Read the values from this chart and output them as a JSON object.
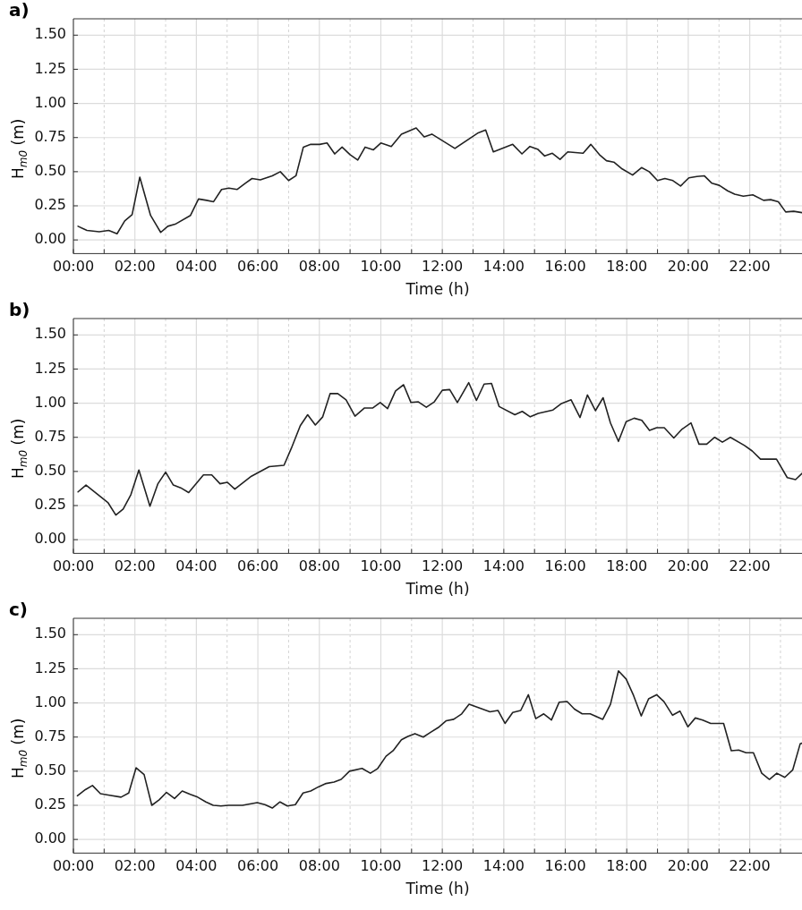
{
  "chart_data": [
    {
      "type": "line",
      "title": "a)",
      "xlabel": "Time (h)",
      "ylabel": "H$_{m0}$ (m)",
      "grid": true,
      "legend": false,
      "marker": "none",
      "line_style": "solid",
      "xlim": [
        0,
        23.7
      ],
      "ylim": [
        -0.1,
        1.62
      ],
      "xticks": [
        {
          "value": 0,
          "label": "00:00"
        },
        {
          "value": 1,
          "label": null
        },
        {
          "value": 2,
          "label": "02:00"
        },
        {
          "value": 3,
          "label": null
        },
        {
          "value": 4,
          "label": "04:00"
        },
        {
          "value": 5,
          "label": null
        },
        {
          "value": 6,
          "label": "06:00"
        },
        {
          "value": 7,
          "label": null
        },
        {
          "value": 8,
          "label": "08:00"
        },
        {
          "value": 9,
          "label": null
        },
        {
          "value": 10,
          "label": "10:00"
        },
        {
          "value": 11,
          "label": null
        },
        {
          "value": 12,
          "label": "12:00"
        },
        {
          "value": 13,
          "label": null
        },
        {
          "value": 14,
          "label": "14:00"
        },
        {
          "value": 15,
          "label": null
        },
        {
          "value": 16,
          "label": "16:00"
        },
        {
          "value": 17,
          "label": null
        },
        {
          "value": 18,
          "label": "18:00"
        },
        {
          "value": 19,
          "label": null
        },
        {
          "value": 20,
          "label": "20:00"
        },
        {
          "value": 21,
          "label": null
        },
        {
          "value": 22,
          "label": "22:00"
        },
        {
          "value": 23,
          "label": null
        }
      ],
      "yticks": [
        {
          "value": 0,
          "label": "0.00"
        },
        {
          "value": 0.25,
          "label": "0.25"
        },
        {
          "value": 0.5,
          "label": "0.50"
        },
        {
          "value": 0.75,
          "label": "0.75"
        },
        {
          "value": 1,
          "label": "1.00"
        },
        {
          "value": 1.25,
          "label": "1.25"
        },
        {
          "value": 1.5,
          "label": "1.50"
        }
      ],
      "x": [
        0.15,
        0.44,
        0.84,
        1.15,
        1.42,
        1.67,
        1.91,
        2.16,
        2.51,
        2.84,
        3.07,
        3.31,
        3.81,
        4.07,
        4.33,
        4.56,
        4.82,
        5.06,
        5.33,
        5.59,
        5.81,
        6.08,
        6.47,
        6.73,
        7.0,
        7.24,
        7.48,
        7.72,
        8.01,
        8.25,
        8.5,
        8.74,
        9.0,
        9.25,
        9.49,
        9.76,
        10.0,
        10.34,
        10.67,
        11.15,
        11.41,
        11.66,
        12.41,
        13.17,
        13.41,
        13.66,
        14.29,
        14.59,
        14.85,
        15.1,
        15.33,
        15.58,
        15.83,
        16.08,
        16.58,
        16.83,
        17.11,
        17.34,
        17.58,
        17.85,
        18.19,
        18.48,
        18.73,
        19.0,
        19.24,
        19.5,
        19.75,
        20.02,
        20.28,
        20.52,
        20.77,
        21.01,
        21.28,
        21.51,
        21.79,
        22.1,
        22.45,
        22.68,
        22.93,
        23.17,
        23.43,
        23.7
      ],
      "series": [
        {
          "color": "#222222",
          "values": [
            0.1,
            0.07,
            0.06,
            0.07,
            0.045,
            0.14,
            0.185,
            0.46,
            0.18,
            0.055,
            0.1,
            0.115,
            0.18,
            0.3,
            0.29,
            0.28,
            0.37,
            0.38,
            0.37,
            0.415,
            0.45,
            0.44,
            0.47,
            0.5,
            0.435,
            0.47,
            0.68,
            0.7,
            0.7,
            0.71,
            0.63,
            0.68,
            0.625,
            0.585,
            0.68,
            0.66,
            0.71,
            0.685,
            0.775,
            0.82,
            0.755,
            0.775,
            0.67,
            0.785,
            0.805,
            0.645,
            0.7,
            0.63,
            0.685,
            0.665,
            0.615,
            0.635,
            0.59,
            0.645,
            0.635,
            0.7,
            0.625,
            0.58,
            0.57,
            0.52,
            0.475,
            0.53,
            0.5,
            0.435,
            0.45,
            0.435,
            0.395,
            0.455,
            0.465,
            0.47,
            0.415,
            0.4,
            0.36,
            0.335,
            0.32,
            0.33,
            0.29,
            0.295,
            0.28,
            0.205,
            0.21,
            0.2
          ]
        }
      ]
    },
    {
      "type": "line",
      "title": "b)",
      "xlabel": "Time (h)",
      "ylabel": "H$_{m0}$ (m)",
      "grid": true,
      "legend": false,
      "marker": "none",
      "line_style": "solid",
      "xlim": [
        0,
        23.7
      ],
      "ylim": [
        -0.1,
        1.62
      ],
      "xticks": [
        {
          "value": 0,
          "label": "00:00"
        },
        {
          "value": 1,
          "label": null
        },
        {
          "value": 2,
          "label": "02:00"
        },
        {
          "value": 3,
          "label": null
        },
        {
          "value": 4,
          "label": "04:00"
        },
        {
          "value": 5,
          "label": null
        },
        {
          "value": 6,
          "label": "06:00"
        },
        {
          "value": 7,
          "label": null
        },
        {
          "value": 8,
          "label": "08:00"
        },
        {
          "value": 9,
          "label": null
        },
        {
          "value": 10,
          "label": "10:00"
        },
        {
          "value": 11,
          "label": null
        },
        {
          "value": 12,
          "label": "12:00"
        },
        {
          "value": 13,
          "label": null
        },
        {
          "value": 14,
          "label": "14:00"
        },
        {
          "value": 15,
          "label": null
        },
        {
          "value": 16,
          "label": "16:00"
        },
        {
          "value": 17,
          "label": null
        },
        {
          "value": 18,
          "label": "18:00"
        },
        {
          "value": 19,
          "label": null
        },
        {
          "value": 20,
          "label": "20:00"
        },
        {
          "value": 21,
          "label": null
        },
        {
          "value": 22,
          "label": "22:00"
        },
        {
          "value": 23,
          "label": null
        }
      ],
      "yticks": [
        {
          "value": 0,
          "label": "0.00"
        },
        {
          "value": 0.25,
          "label": "0.25"
        },
        {
          "value": 0.5,
          "label": "0.50"
        },
        {
          "value": 0.75,
          "label": "0.75"
        },
        {
          "value": 1,
          "label": "1.00"
        },
        {
          "value": 1.25,
          "label": "1.25"
        },
        {
          "value": 1.5,
          "label": "1.50"
        }
      ],
      "x": [
        0.15,
        0.41,
        1.13,
        1.38,
        1.62,
        1.87,
        2.13,
        2.49,
        2.75,
        3.0,
        3.25,
        3.49,
        3.75,
        4.23,
        4.5,
        4.77,
        5.01,
        5.25,
        5.79,
        6.37,
        6.85,
        7.09,
        7.38,
        7.62,
        7.87,
        8.11,
        8.35,
        8.6,
        8.87,
        9.16,
        9.47,
        9.74,
        9.98,
        10.22,
        10.48,
        10.74,
        10.98,
        11.22,
        11.48,
        11.74,
        12.0,
        12.24,
        12.49,
        12.86,
        13.11,
        13.36,
        13.6,
        13.85,
        14.36,
        14.6,
        14.86,
        15.12,
        15.6,
        15.86,
        16.19,
        16.48,
        16.72,
        16.98,
        17.23,
        17.47,
        17.73,
        17.98,
        18.24,
        18.49,
        18.74,
        18.97,
        19.22,
        19.53,
        19.8,
        20.09,
        20.35,
        20.6,
        20.86,
        21.11,
        21.37,
        21.83,
        22.08,
        22.35,
        22.87,
        23.22,
        23.49,
        23.7
      ],
      "series": [
        {
          "color": "#222222",
          "values": [
            0.35,
            0.4,
            0.27,
            0.18,
            0.225,
            0.33,
            0.51,
            0.245,
            0.41,
            0.495,
            0.4,
            0.38,
            0.345,
            0.475,
            0.475,
            0.41,
            0.42,
            0.37,
            0.465,
            0.535,
            0.545,
            0.67,
            0.835,
            0.915,
            0.84,
            0.9,
            1.07,
            1.07,
            1.025,
            0.905,
            0.965,
            0.965,
            1.005,
            0.96,
            1.09,
            1.135,
            1.005,
            1.01,
            0.97,
            1.01,
            1.095,
            1.1,
            1.005,
            1.15,
            1.02,
            1.14,
            1.145,
            0.975,
            0.915,
            0.94,
            0.9,
            0.925,
            0.95,
            0.995,
            1.025,
            0.895,
            1.06,
            0.945,
            1.04,
            0.855,
            0.72,
            0.865,
            0.89,
            0.875,
            0.8,
            0.82,
            0.82,
            0.745,
            0.81,
            0.855,
            0.7,
            0.7,
            0.75,
            0.715,
            0.75,
            0.69,
            0.65,
            0.59,
            0.59,
            0.455,
            0.44,
            0.485
          ]
        }
      ]
    },
    {
      "type": "line",
      "title": "c)",
      "xlabel": "Time (h)",
      "ylabel": "H$_{m0}$ (m)",
      "grid": true,
      "legend": false,
      "marker": "none",
      "line_style": "solid",
      "xlim": [
        0,
        23.7
      ],
      "ylim": [
        -0.1,
        1.62
      ],
      "xticks": [
        {
          "value": 0,
          "label": "00:00"
        },
        {
          "value": 1,
          "label": null
        },
        {
          "value": 2,
          "label": "02:00"
        },
        {
          "value": 3,
          "label": null
        },
        {
          "value": 4,
          "label": "04:00"
        },
        {
          "value": 5,
          "label": null
        },
        {
          "value": 6,
          "label": "06:00"
        },
        {
          "value": 7,
          "label": null
        },
        {
          "value": 8,
          "label": "08:00"
        },
        {
          "value": 9,
          "label": null
        },
        {
          "value": 10,
          "label": "10:00"
        },
        {
          "value": 11,
          "label": null
        },
        {
          "value": 12,
          "label": "12:00"
        },
        {
          "value": 13,
          "label": null
        },
        {
          "value": 14,
          "label": "14:00"
        },
        {
          "value": 15,
          "label": null
        },
        {
          "value": 16,
          "label": "16:00"
        },
        {
          "value": 17,
          "label": null
        },
        {
          "value": 18,
          "label": "18:00"
        },
        {
          "value": 19,
          "label": null
        },
        {
          "value": 20,
          "label": "20:00"
        },
        {
          "value": 21,
          "label": null
        },
        {
          "value": 22,
          "label": "22:00"
        },
        {
          "value": 23,
          "label": null
        }
      ],
      "yticks": [
        {
          "value": 0,
          "label": "0.00"
        },
        {
          "value": 0.25,
          "label": "0.25"
        },
        {
          "value": 0.5,
          "label": "0.50"
        },
        {
          "value": 0.75,
          "label": "0.75"
        },
        {
          "value": 1,
          "label": "1.00"
        },
        {
          "value": 1.25,
          "label": "1.25"
        },
        {
          "value": 1.5,
          "label": "1.50"
        }
      ],
      "x": [
        0.13,
        0.39,
        0.62,
        0.88,
        1.13,
        1.55,
        1.8,
        2.04,
        2.3,
        2.55,
        2.79,
        3.03,
        3.29,
        3.54,
        3.8,
        4.04,
        4.31,
        4.55,
        4.8,
        5.04,
        5.5,
        5.98,
        6.23,
        6.47,
        6.72,
        6.96,
        7.22,
        7.47,
        7.72,
        7.97,
        8.22,
        8.48,
        8.71,
        8.98,
        9.39,
        9.66,
        9.9,
        10.17,
        10.4,
        10.67,
        10.88,
        11.11,
        11.38,
        11.62,
        11.87,
        12.13,
        12.37,
        12.63,
        12.87,
        13.55,
        13.81,
        14.04,
        14.29,
        14.55,
        14.8,
        15.04,
        15.3,
        15.55,
        15.8,
        16.06,
        16.3,
        16.55,
        16.81,
        17.22,
        17.47,
        17.73,
        17.98,
        18.22,
        18.47,
        18.71,
        18.97,
        19.21,
        19.49,
        19.73,
        19.99,
        20.23,
        20.47,
        20.73,
        21.15,
        21.4,
        21.64,
        21.88,
        22.12,
        22.39,
        22.64,
        22.88,
        23.14,
        23.4,
        23.64,
        23.7
      ],
      "series": [
        {
          "color": "#222222",
          "values": [
            0.32,
            0.365,
            0.395,
            0.335,
            0.325,
            0.31,
            0.34,
            0.525,
            0.475,
            0.25,
            0.29,
            0.345,
            0.3,
            0.355,
            0.33,
            0.31,
            0.275,
            0.25,
            0.245,
            0.25,
            0.25,
            0.27,
            0.255,
            0.23,
            0.275,
            0.245,
            0.255,
            0.34,
            0.355,
            0.385,
            0.41,
            0.42,
            0.44,
            0.5,
            0.52,
            0.485,
            0.52,
            0.61,
            0.65,
            0.73,
            0.755,
            0.775,
            0.75,
            0.785,
            0.82,
            0.87,
            0.88,
            0.92,
            0.99,
            0.935,
            0.945,
            0.85,
            0.93,
            0.945,
            1.06,
            0.885,
            0.92,
            0.875,
            1.005,
            1.01,
            0.955,
            0.92,
            0.92,
            0.88,
            0.99,
            1.235,
            1.175,
            1.055,
            0.905,
            1.03,
            1.06,
            1.01,
            0.91,
            0.94,
            0.825,
            0.89,
            0.875,
            0.85,
            0.85,
            0.65,
            0.655,
            0.635,
            0.635,
            0.485,
            0.44,
            0.485,
            0.455,
            0.51,
            0.7,
            0.705
          ]
        }
      ]
    }
  ]
}
